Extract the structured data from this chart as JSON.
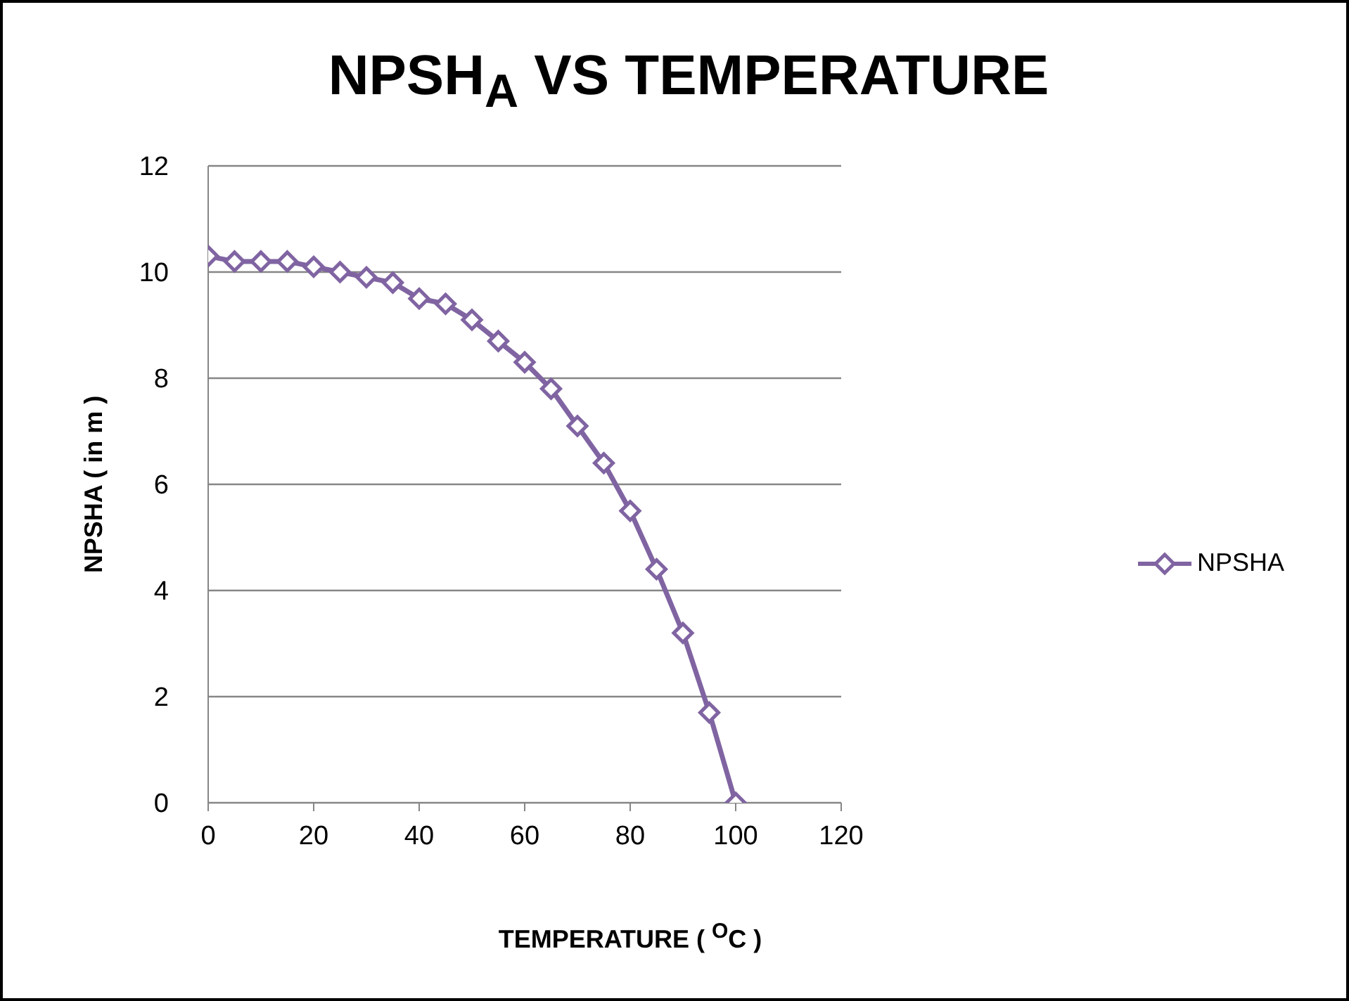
{
  "chart_data": {
    "type": "line",
    "title": "NPSH$_{A}$ VS TEMPERATURE",
    "xlabel": "TEMPERATURE ( $^{O}$C )",
    "ylabel": "NPSHA ( in m )",
    "x": [
      0,
      5,
      10,
      15,
      20,
      25,
      30,
      35,
      40,
      45,
      50,
      55,
      60,
      65,
      70,
      75,
      80,
      85,
      90,
      95,
      100
    ],
    "series": [
      {
        "name": "NPSHA",
        "color": "#8064a2",
        "values": [
          10.3,
          10.2,
          10.2,
          10.2,
          10.1,
          10.0,
          9.9,
          9.8,
          9.5,
          9.4,
          9.1,
          8.7,
          8.3,
          7.8,
          7.1,
          6.4,
          5.5,
          4.4,
          3.2,
          1.7,
          0
        ]
      }
    ],
    "xlim": [
      0,
      120
    ],
    "xticks": [
      0,
      20,
      40,
      60,
      80,
      100,
      120
    ],
    "ylim": [
      0,
      12
    ],
    "yticks": [
      0,
      2,
      4,
      6,
      8,
      10,
      12
    ],
    "grid": "y",
    "legend": "right",
    "marker": "diamond",
    "line_style": "solid"
  }
}
